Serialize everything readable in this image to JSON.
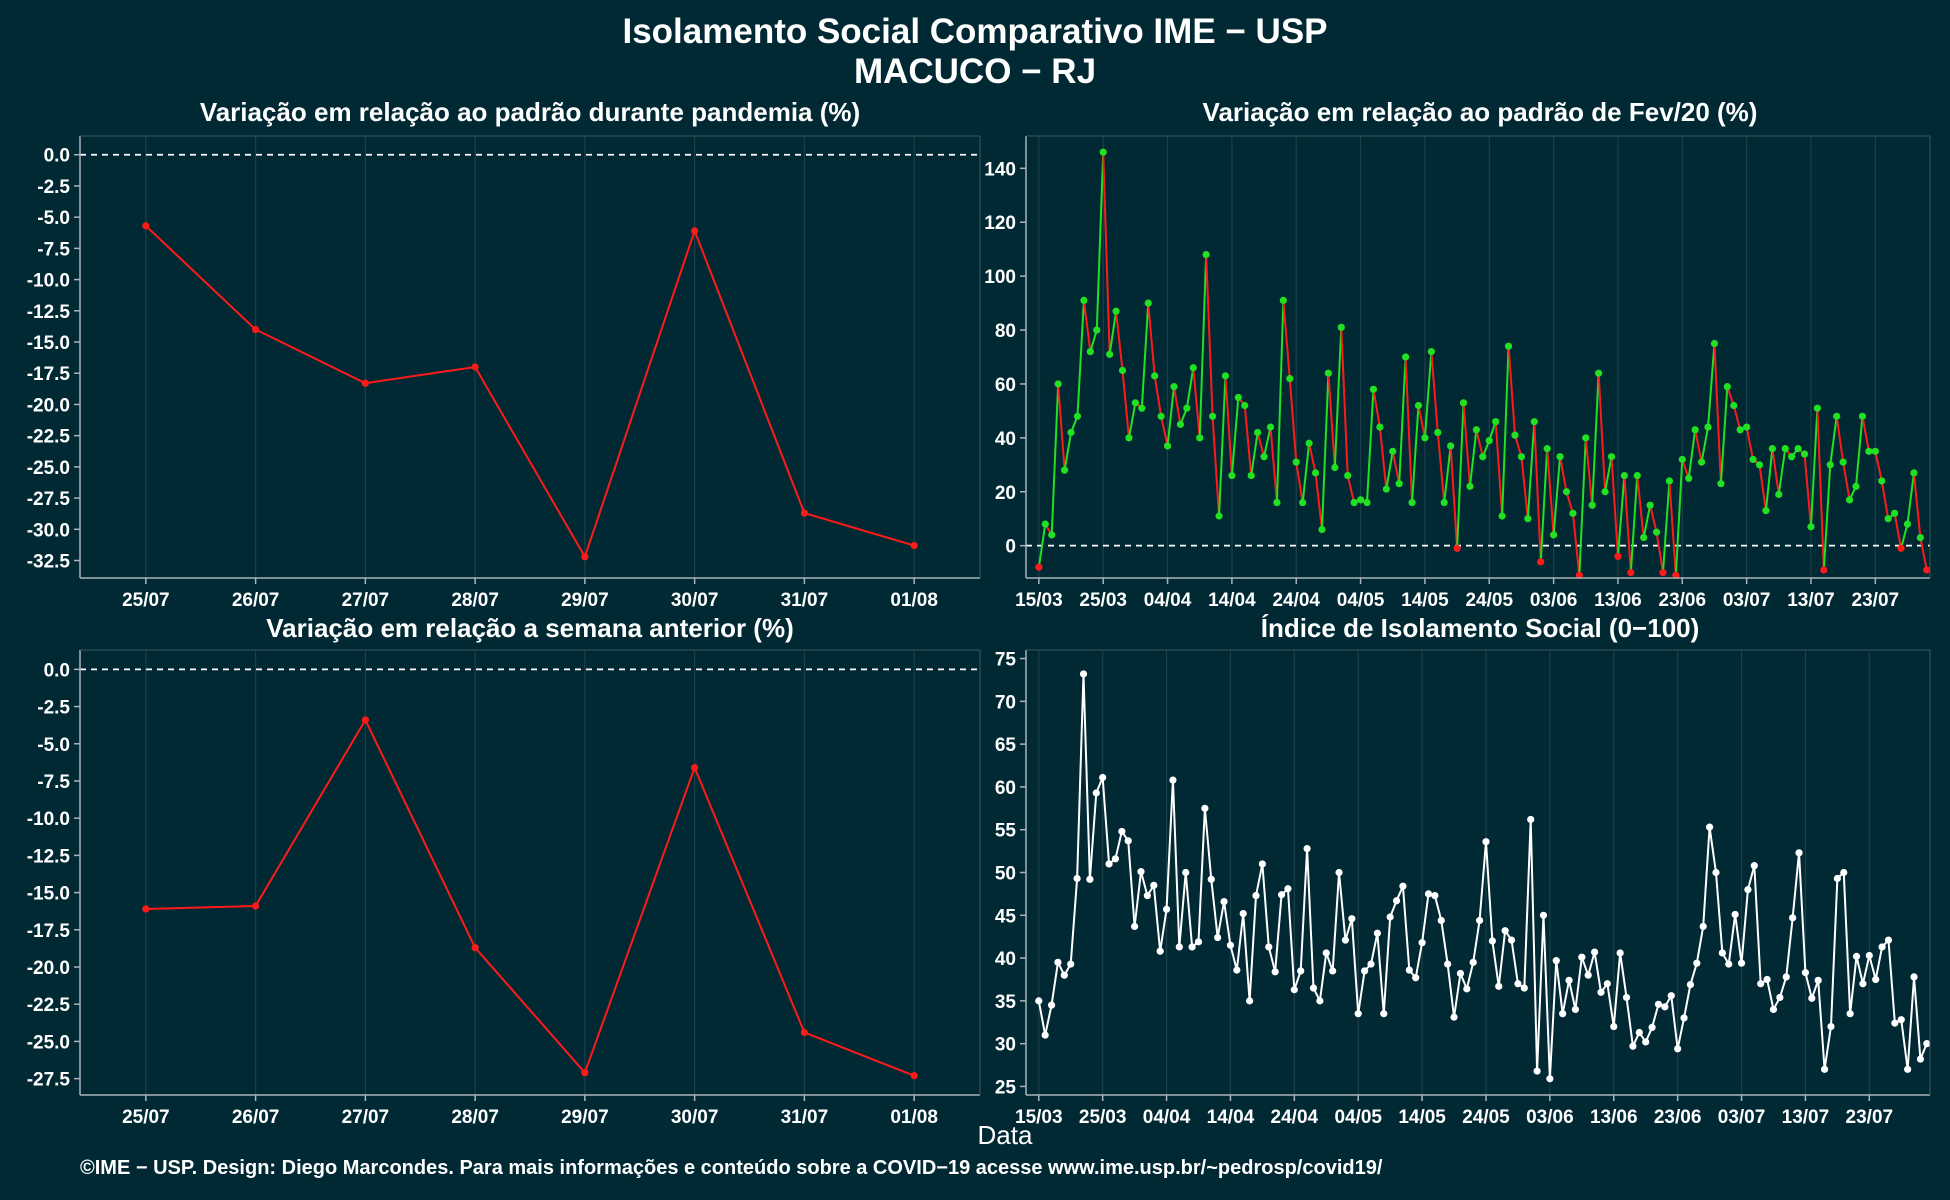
{
  "title_line1": "Isolamento Social Comparativo IME − USP",
  "title_line2": "MACUCO − RJ",
  "xlabel": "Data",
  "footer": "©IME − USP. Design: Diego Marcondes. Para mais informações e conteúdo sobre a COVID−19 acesse www.ime.usp.br/~pedrosp/covid19/",
  "colors": {
    "background": "#012934",
    "decrease": "#ff1a1a",
    "increase": "#22e022",
    "index": "#ffffff",
    "axis": "#a8b4b8"
  },
  "chart_data": [
    {
      "type": "line",
      "title": "Variação em relação ao padrão durante pandemia (%)",
      "categories": [
        "25/07",
        "26/07",
        "27/07",
        "28/07",
        "29/07",
        "30/07",
        "31/07",
        "01/08"
      ],
      "values": [
        -5.7,
        -14.0,
        -18.3,
        -17.0,
        -32.2,
        -6.1,
        -28.7,
        -31.3
      ],
      "yticks": [
        "0.0",
        "-2.5",
        "-5.0",
        "-7.5",
        "-10.0",
        "-12.5",
        "-15.0",
        "-17.5",
        "-20.0",
        "-22.5",
        "-25.0",
        "-27.5",
        "-30.0",
        "-32.5"
      ],
      "ylim": [
        -33.9,
        1.5
      ],
      "reference_line": 0
    },
    {
      "type": "line",
      "title": "Variação em relação ao padrão de Fev/20 (%)",
      "x_start": "15/03",
      "xticks": [
        "15/03",
        "25/03",
        "04/04",
        "14/04",
        "24/04",
        "04/05",
        "14/05",
        "24/05",
        "03/06",
        "13/06",
        "23/06",
        "03/07",
        "13/07",
        "23/07"
      ],
      "yticks": [
        "0",
        "20",
        "40",
        "60",
        "80",
        "100",
        "120",
        "140"
      ],
      "ylim": [
        -12,
        152
      ],
      "reference_line": 0,
      "values": [
        -8,
        8,
        4,
        60,
        28,
        42,
        48,
        91,
        72,
        80,
        146,
        71,
        87,
        65,
        40,
        53,
        51,
        90,
        63,
        48,
        37,
        59,
        45,
        51,
        66,
        40,
        108,
        48,
        11,
        63,
        26,
        55,
        52,
        26,
        42,
        33,
        44,
        16,
        91,
        62,
        31,
        16,
        38,
        27,
        6,
        64,
        29,
        81,
        26,
        16,
        17,
        16,
        58,
        44,
        21,
        35,
        23,
        70,
        16,
        52,
        40,
        72,
        42,
        16,
        37,
        -1,
        53,
        22,
        43,
        33,
        39,
        46,
        11,
        74,
        41,
        33,
        10,
        46,
        -6,
        36,
        4,
        33,
        20,
        12,
        -11,
        40,
        15,
        64,
        20,
        33,
        -4,
        26,
        -10,
        26,
        3,
        15,
        5,
        -10,
        24,
        -11,
        32,
        25,
        43,
        31,
        44,
        75,
        23,
        59,
        52,
        43,
        44,
        32,
        30,
        13,
        36,
        19,
        36,
        33,
        36,
        34,
        7,
        51,
        -9,
        30,
        48,
        31,
        17,
        22,
        48,
        35,
        35,
        24,
        10,
        12,
        -1,
        8,
        27,
        3,
        -9
      ]
    },
    {
      "type": "line",
      "title": "Variação em relação a semana anterior (%)",
      "categories": [
        "25/07",
        "26/07",
        "27/07",
        "28/07",
        "29/07",
        "30/07",
        "31/07",
        "01/08"
      ],
      "values": [
        -16.1,
        -15.9,
        -3.4,
        -18.7,
        -27.1,
        -6.6,
        -24.4,
        -27.3
      ],
      "yticks": [
        "0.0",
        "-2.5",
        "-5.0",
        "-7.5",
        "-10.0",
        "-12.5",
        "-15.0",
        "-17.5",
        "-20.0",
        "-22.5",
        "-25.0",
        "-27.5"
      ],
      "ylim": [
        -28.6,
        1.3
      ],
      "reference_line": 0
    },
    {
      "type": "line",
      "title": "Índice de Isolamento Social (0−100)",
      "x_start": "15/03",
      "xticks": [
        "15/03",
        "25/03",
        "04/04",
        "14/04",
        "24/04",
        "04/05",
        "14/05",
        "24/05",
        "03/06",
        "13/06",
        "23/06",
        "03/07",
        "13/07",
        "23/07"
      ],
      "yticks": [
        "25",
        "30",
        "35",
        "40",
        "45",
        "50",
        "55",
        "60",
        "65",
        "70",
        "75"
      ],
      "ylim": [
        24,
        76
      ],
      "values": [
        35,
        31,
        34.5,
        39.5,
        38,
        39.3,
        49.3,
        73.2,
        49.2,
        59.3,
        61.1,
        51,
        51.6,
        54.8,
        53.7,
        43.7,
        50.1,
        47.3,
        48.5,
        40.8,
        45.7,
        60.8,
        41.3,
        50,
        41.3,
        41.9,
        57.5,
        49.2,
        42.4,
        46.6,
        41.5,
        38.6,
        45.2,
        35,
        47.3,
        51,
        41.3,
        38.4,
        47.4,
        48.1,
        36.3,
        38.5,
        52.8,
        36.5,
        35,
        40.6,
        38.5,
        50,
        42.1,
        44.6,
        33.5,
        38.5,
        39.3,
        42.9,
        33.5,
        44.8,
        46.7,
        48.4,
        38.6,
        37.7,
        41.8,
        47.5,
        47.3,
        44.4,
        39.3,
        33.1,
        38.2,
        36.4,
        39.5,
        44.4,
        53.6,
        42,
        36.7,
        43.2,
        42.1,
        37,
        36.5,
        56.2,
        26.8,
        45,
        25.9,
        39.7,
        33.5,
        37.4,
        34,
        40.1,
        38,
        40.7,
        36,
        37,
        32,
        40.6,
        35.4,
        29.7,
        31.3,
        30.2,
        31.9,
        34.6,
        34.3,
        35.6,
        29.4,
        33,
        36.9,
        39.4,
        43.7,
        55.3,
        50,
        40.6,
        39.3,
        45.1,
        39.4,
        48,
        50.8,
        37,
        37.5,
        34,
        35.4,
        37.8,
        44.7,
        52.3,
        38.3,
        35.3,
        37.4,
        27,
        32,
        49.3,
        50,
        33.5,
        40.2,
        37,
        40.3,
        37.5,
        41.3,
        42.1,
        32.4,
        32.8,
        27,
        37.8,
        28.2,
        30
      ]
    }
  ]
}
